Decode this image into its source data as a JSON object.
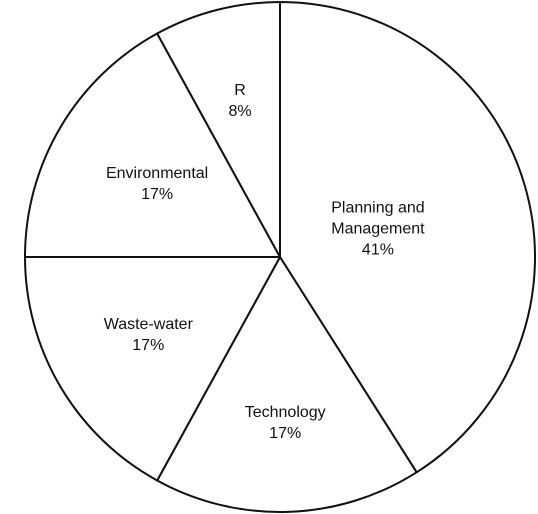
{
  "chart_data": {
    "type": "pie",
    "categories": [
      "Planning and Management",
      "Technology",
      "Waste-water",
      "Environmental",
      "R"
    ],
    "values": [
      41,
      17,
      17,
      17,
      8
    ],
    "value_labels": [
      "41%",
      "17%",
      "17%",
      "17%",
      "8%"
    ],
    "color": "#ffffff"
  }
}
